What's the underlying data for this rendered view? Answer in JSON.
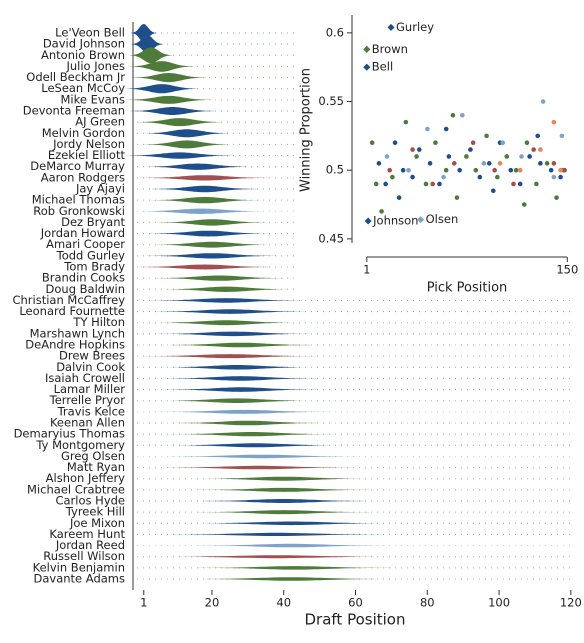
{
  "chart_data": [
    {
      "type": "violin",
      "xlabel": "Draft Position",
      "categories": [
        "Le'Veon Bell",
        "David Johnson",
        "Antonio Brown",
        "Julio Jones",
        "Odell Beckham Jr",
        "LeSean McCoy",
        "Mike Evans",
        "Devonta Freeman",
        "AJ Green",
        "Melvin Gordon",
        "Jordy Nelson",
        "Ezekiel Elliott",
        "DeMarco Murray",
        "Aaron Rodgers",
        "Jay Ajayi",
        "Michael Thomas",
        "Rob Gronkowski",
        "Dez Bryant",
        "Jordan Howard",
        "Amari Cooper",
        "Todd Gurley",
        "Tom Brady",
        "Brandin Cooks",
        "Doug Baldwin",
        "Christian McCaffrey",
        "Leonard Fournette",
        "TY Hilton",
        "Marshawn Lynch",
        "DeAndre Hopkins",
        "Drew Brees",
        "Dalvin Cook",
        "Isaiah Crowell",
        "Lamar Miller",
        "Terrelle Pryor",
        "Travis Kelce",
        "Keenan Allen",
        "Demaryius Thomas",
        "Ty Montgomery",
        "Greg Olsen",
        "Matt Ryan",
        "Alshon Jeffery",
        "Michael Crabtree",
        "Carlos Hyde",
        "Tyreek Hill",
        "Joe Mixon",
        "Kareem Hunt",
        "Jordan Reed",
        "Russell Wilson",
        "Kelvin Benjamin",
        "Davante Adams"
      ],
      "values": [
        1,
        2,
        3,
        6,
        8,
        6,
        8,
        9,
        11,
        13,
        13,
        11,
        16,
        18,
        18,
        18,
        17,
        20,
        19,
        20,
        20,
        18,
        22,
        24,
        24,
        25,
        24,
        26,
        28,
        25,
        27,
        28,
        28,
        27,
        29,
        30,
        31,
        32,
        34,
        33,
        40,
        40,
        40,
        40,
        42,
        38,
        42,
        38,
        43,
        42
      ],
      "spreads": [
        1.2,
        1.5,
        2,
        3,
        3.5,
        3.5,
        4,
        4,
        4,
        4,
        4,
        5,
        5,
        6,
        5,
        5,
        6,
        5,
        5.5,
        5.5,
        6,
        6.5,
        6,
        6,
        7,
        7,
        6.5,
        7,
        7,
        8,
        7,
        7,
        7,
        7,
        8,
        7,
        7.5,
        8,
        9,
        9,
        8,
        8,
        8,
        8,
        9,
        10,
        9,
        11,
        9,
        9
      ],
      "colors": [
        "#1f4e8c",
        "#1f4e8c",
        "#4e7a3a",
        "#4e7a3a",
        "#4e7a3a",
        "#1f4e8c",
        "#4e7a3a",
        "#1f4e8c",
        "#4e7a3a",
        "#1f4e8c",
        "#4e7a3a",
        "#1f4e8c",
        "#1f4e8c",
        "#a05050",
        "#1f4e8c",
        "#4e7a3a",
        "#7fa3c8",
        "#4e7a3a",
        "#1f4e8c",
        "#4e7a3a",
        "#1f4e8c",
        "#a05050",
        "#4e7a3a",
        "#4e7a3a",
        "#1f4e8c",
        "#1f4e8c",
        "#4e7a3a",
        "#1f4e8c",
        "#4e7a3a",
        "#a05050",
        "#1f4e8c",
        "#1f4e8c",
        "#1f4e8c",
        "#4e7a3a",
        "#7fa3c8",
        "#4e7a3a",
        "#4e7a3a",
        "#1f4e8c",
        "#7fa3c8",
        "#a05050",
        "#4e7a3a",
        "#4e7a3a",
        "#1f4e8c",
        "#4e7a3a",
        "#1f4e8c",
        "#1f4e8c",
        "#7fa3c8",
        "#a05050",
        "#4e7a3a",
        "#4e7a3a"
      ],
      "xlim": [
        -2,
        122
      ],
      "xticks": [
        1,
        20,
        40,
        60,
        80,
        100,
        120
      ]
    },
    {
      "type": "scatter",
      "xlabel": "Pick Position",
      "ylabel": "Winning Proportion",
      "xlim": [
        -10,
        152
      ],
      "ylim": [
        0.447,
        0.613
      ],
      "xticks": [
        1,
        150
      ],
      "yticks": [
        0.45,
        0.5,
        0.55,
        0.6
      ],
      "series": [
        {
          "color": "#1f4e8c",
          "x": [
            10,
            15,
            22,
            28,
            35,
            40,
            48,
            55,
            62,
            70,
            78,
            85,
            92,
            100,
            108,
            115,
            122,
            130,
            138,
            145,
            25,
            60,
            95,
            128
          ],
          "y": [
            0.505,
            0.49,
            0.52,
            0.5,
            0.495,
            0.515,
            0.505,
            0.49,
            0.51,
            0.5,
            0.515,
            0.495,
            0.505,
            0.52,
            0.5,
            0.49,
            0.51,
            0.505,
            0.5,
            0.495,
            0.48,
            0.53,
            0.485,
            0.525
          ]
        },
        {
          "color": "#4e7a3a",
          "x": [
            5,
            12,
            20,
            30,
            38,
            45,
            52,
            60,
            68,
            75,
            82,
            90,
            98,
            105,
            112,
            120,
            127,
            135,
            142,
            148,
            8,
            65,
            118
          ],
          "y": [
            0.52,
            0.47,
            0.495,
            0.535,
            0.51,
            0.49,
            0.52,
            0.5,
            0.48,
            0.51,
            0.5,
            0.525,
            0.495,
            0.51,
            0.5,
            0.52,
            0.49,
            0.505,
            0.48,
            0.5,
            0.49,
            0.54,
            0.475
          ]
        },
        {
          "color": "#a05050",
          "x": [
            18,
            35,
            50,
            66,
            80,
            96,
            110,
            125,
            140,
            147
          ],
          "y": [
            0.5,
            0.515,
            0.49,
            0.505,
            0.52,
            0.5,
            0.49,
            0.515,
            0.505,
            0.5
          ]
        },
        {
          "color": "#7fa3c8",
          "x": [
            16,
            32,
            46,
            58,
            72,
            88,
            102,
            116,
            132,
            146,
            140
          ],
          "y": [
            0.51,
            0.5,
            0.53,
            0.495,
            0.54,
            0.505,
            0.52,
            0.51,
            0.55,
            0.525,
            0.495
          ]
        },
        {
          "color": "#e08a5a",
          "x": [
            100,
            115,
            130,
            145,
            140
          ],
          "y": [
            0.505,
            0.5,
            0.515,
            0.5,
            0.535
          ]
        }
      ],
      "annotations": [
        {
          "text": "Gurley",
          "x": 19,
          "y": 0.604,
          "color": "#1f4e8c"
        },
        {
          "text": "Brown",
          "x": 1,
          "y": 0.588,
          "color": "#4e7a3a"
        },
        {
          "text": "Bell",
          "x": 1,
          "y": 0.575,
          "color": "#1f4e8c"
        },
        {
          "text": "Johnson",
          "x": 2,
          "y": 0.463,
          "color": "#1f4e8c"
        },
        {
          "text": "Olsen",
          "x": 41,
          "y": 0.464,
          "color": "#7fa3c8"
        }
      ]
    }
  ]
}
